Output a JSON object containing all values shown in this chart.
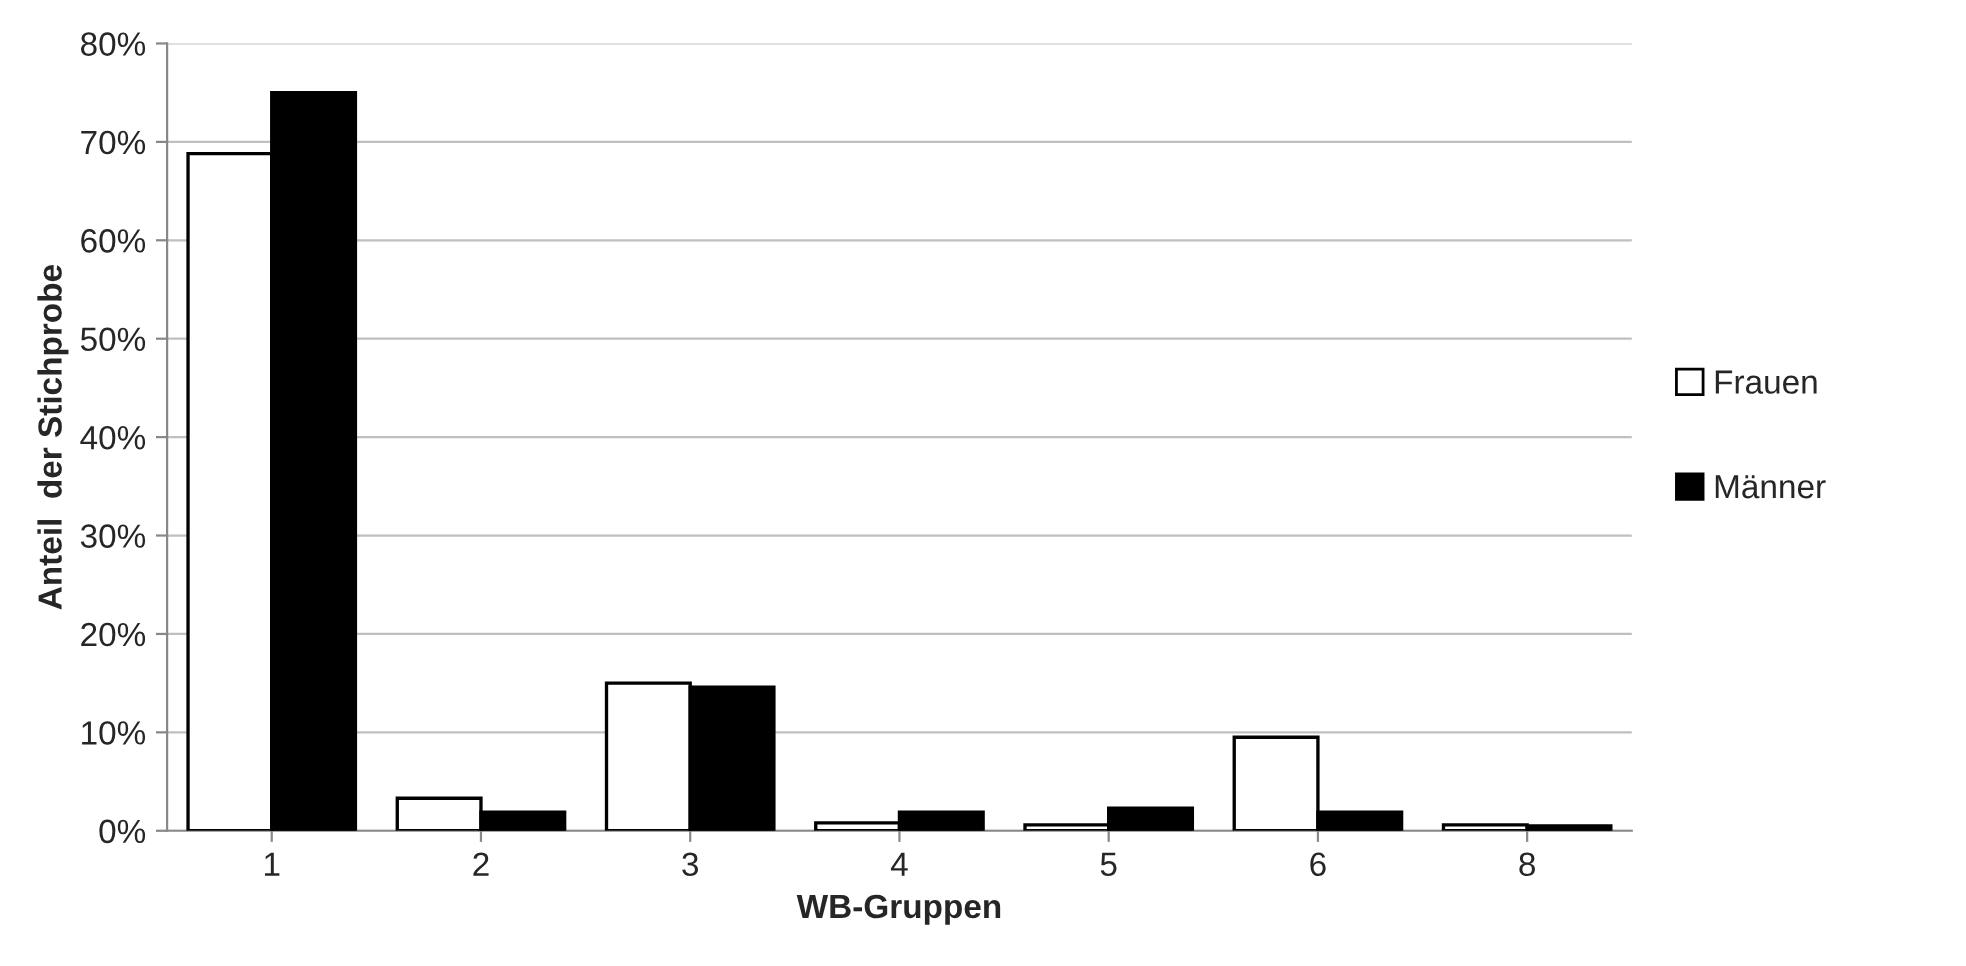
{
  "chart_data": {
    "type": "bar",
    "xlabel": "WB-Gruppen",
    "ylabel": "Anteil  der Stichprobe",
    "categories": [
      "1",
      "2",
      "3",
      "4",
      "5",
      "6",
      "8"
    ],
    "series": [
      {
        "name": "Frauen",
        "color": "#ffffff",
        "values": [
          68.8,
          3.3,
          15.0,
          0.8,
          0.6,
          9.5,
          0.6
        ]
      },
      {
        "name": "Männer",
        "color": "#000000",
        "values": [
          75.0,
          1.9,
          14.6,
          1.9,
          2.3,
          1.9,
          0.5
        ]
      }
    ],
    "ylim": [
      0,
      80
    ],
    "yticks": [
      {
        "value": 0,
        "label": "0%"
      },
      {
        "value": 10,
        "label": "10%"
      },
      {
        "value": 20,
        "label": "20%"
      },
      {
        "value": 30,
        "label": "30%"
      },
      {
        "value": 40,
        "label": "40%"
      },
      {
        "value": 50,
        "label": "50%"
      },
      {
        "value": 60,
        "label": "60%"
      },
      {
        "value": 70,
        "label": "70%"
      },
      {
        "value": 80,
        "label": "80%"
      }
    ],
    "grid": "y",
    "legend": "right"
  }
}
